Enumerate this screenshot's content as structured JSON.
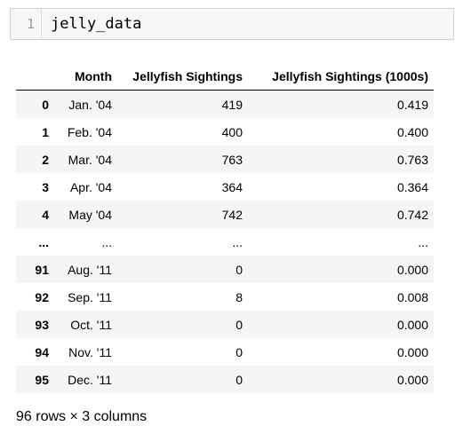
{
  "code_cell": {
    "line_number": "1",
    "code": "jelly_data"
  },
  "table": {
    "columns": [
      "",
      "Month",
      "Jellyfish Sightings",
      "Jellyfish Sightings (1000s)"
    ],
    "rows": [
      {
        "index": "0",
        "month": "Jan. '04",
        "sightings": "419",
        "sightings_1000s": "0.419"
      },
      {
        "index": "1",
        "month": "Feb. '04",
        "sightings": "400",
        "sightings_1000s": "0.400"
      },
      {
        "index": "2",
        "month": "Mar. '04",
        "sightings": "763",
        "sightings_1000s": "0.763"
      },
      {
        "index": "3",
        "month": "Apr. '04",
        "sightings": "364",
        "sightings_1000s": "0.364"
      },
      {
        "index": "4",
        "month": "May '04",
        "sightings": "742",
        "sightings_1000s": "0.742"
      },
      {
        "index": "...",
        "month": "...",
        "sightings": "...",
        "sightings_1000s": "..."
      },
      {
        "index": "91",
        "month": "Aug. '11",
        "sightings": "0",
        "sightings_1000s": "0.000"
      },
      {
        "index": "92",
        "month": "Sep. '11",
        "sightings": "8",
        "sightings_1000s": "0.008"
      },
      {
        "index": "93",
        "month": "Oct. '11",
        "sightings": "0",
        "sightings_1000s": "0.000"
      },
      {
        "index": "94",
        "month": "Nov. '11",
        "sightings": "0",
        "sightings_1000s": "0.000"
      },
      {
        "index": "95",
        "month": "Dec. '11",
        "sightings": "0",
        "sightings_1000s": "0.000"
      }
    ]
  },
  "footer": {
    "shape_text": "96 rows × 3 columns"
  }
}
